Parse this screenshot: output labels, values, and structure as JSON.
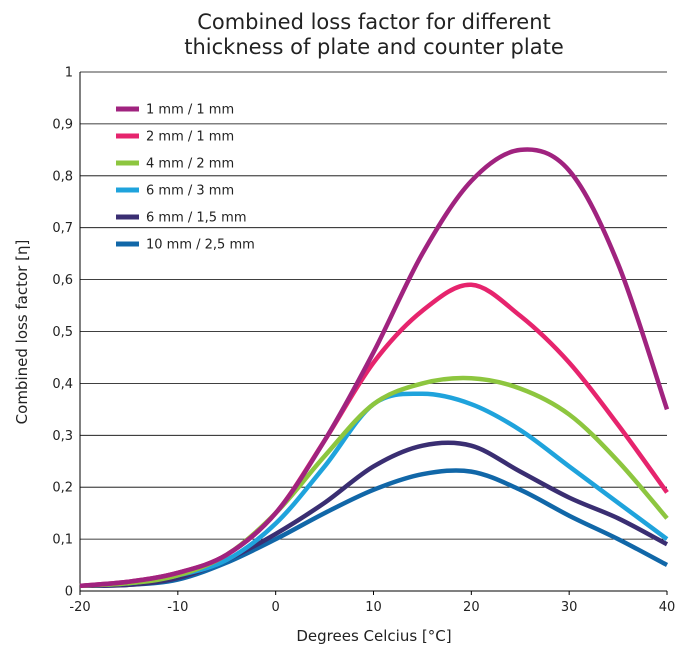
{
  "chart_data": {
    "type": "line",
    "title": "Combined loss factor for different thickness of plate and counter plate",
    "title_lines": [
      "Combined loss factor for different",
      "thickness of plate and counter plate"
    ],
    "xlabel": "Degrees Celcius [°C]",
    "ylabel": "Combined loss factor  [η]",
    "xlim": [
      -20,
      40
    ],
    "ylim": [
      0,
      1
    ],
    "x_ticks": [
      -20,
      -10,
      0,
      10,
      20,
      30,
      40
    ],
    "x_tick_labels": [
      "-20",
      "-10",
      "0",
      "10",
      "20",
      "30",
      "40"
    ],
    "y_ticks": [
      0,
      0.1,
      0.2,
      0.3,
      0.4,
      0.5,
      0.6,
      0.7,
      0.8,
      0.9,
      1
    ],
    "y_tick_labels": [
      "0",
      "0,1",
      "0,2",
      "0,3",
      "0,4",
      "0,5",
      "0,6",
      "0,7",
      "0,8",
      "0,9",
      "1"
    ],
    "grid": "horizontal",
    "legend_position": "top-left",
    "series": [
      {
        "name": "1 mm / 1 mm",
        "color": "#a0237f",
        "x": [
          -20,
          -15,
          -10,
          -5,
          0,
          5,
          10,
          15,
          20,
          25,
          30,
          35,
          40
        ],
        "y": [
          0.01,
          0.018,
          0.035,
          0.07,
          0.15,
          0.29,
          0.46,
          0.65,
          0.79,
          0.85,
          0.81,
          0.63,
          0.35
        ]
      },
      {
        "name": "2 mm / 1 mm",
        "color": "#e6246d",
        "x": [
          -20,
          -15,
          -10,
          -5,
          0,
          5,
          10,
          15,
          20,
          25,
          30,
          35,
          40
        ],
        "y": [
          0.01,
          0.018,
          0.035,
          0.07,
          0.15,
          0.29,
          0.44,
          0.54,
          0.59,
          0.53,
          0.44,
          0.32,
          0.19
        ]
      },
      {
        "name": "4 mm / 2 mm",
        "color": "#8dc63f",
        "x": [
          -20,
          -15,
          -10,
          -5,
          0,
          5,
          10,
          15,
          20,
          25,
          30,
          35,
          40
        ],
        "y": [
          0.01,
          0.015,
          0.03,
          0.07,
          0.15,
          0.26,
          0.36,
          0.4,
          0.41,
          0.39,
          0.34,
          0.25,
          0.14
        ]
      },
      {
        "name": "6 mm / 3 mm",
        "color": "#1fa3dc",
        "x": [
          -20,
          -15,
          -10,
          -5,
          0,
          5,
          10,
          15,
          20,
          25,
          30,
          35,
          40
        ],
        "y": [
          0.01,
          0.015,
          0.03,
          0.06,
          0.13,
          0.24,
          0.36,
          0.38,
          0.36,
          0.31,
          0.24,
          0.17,
          0.1
        ]
      },
      {
        "name": "6 mm / 1,5 mm",
        "color": "#3a2e72",
        "x": [
          -20,
          -15,
          -10,
          -5,
          0,
          5,
          10,
          15,
          20,
          25,
          30,
          35,
          40
        ],
        "y": [
          0.01,
          0.012,
          0.025,
          0.06,
          0.11,
          0.17,
          0.24,
          0.28,
          0.28,
          0.23,
          0.18,
          0.14,
          0.09
        ]
      },
      {
        "name": "10 mm / 2,5 mm",
        "color": "#1167a8",
        "x": [
          -20,
          -15,
          -10,
          -5,
          0,
          5,
          10,
          15,
          20,
          25,
          30,
          35,
          40
        ],
        "y": [
          0.01,
          0.012,
          0.022,
          0.055,
          0.1,
          0.15,
          0.195,
          0.225,
          0.23,
          0.195,
          0.145,
          0.1,
          0.05
        ]
      }
    ]
  }
}
